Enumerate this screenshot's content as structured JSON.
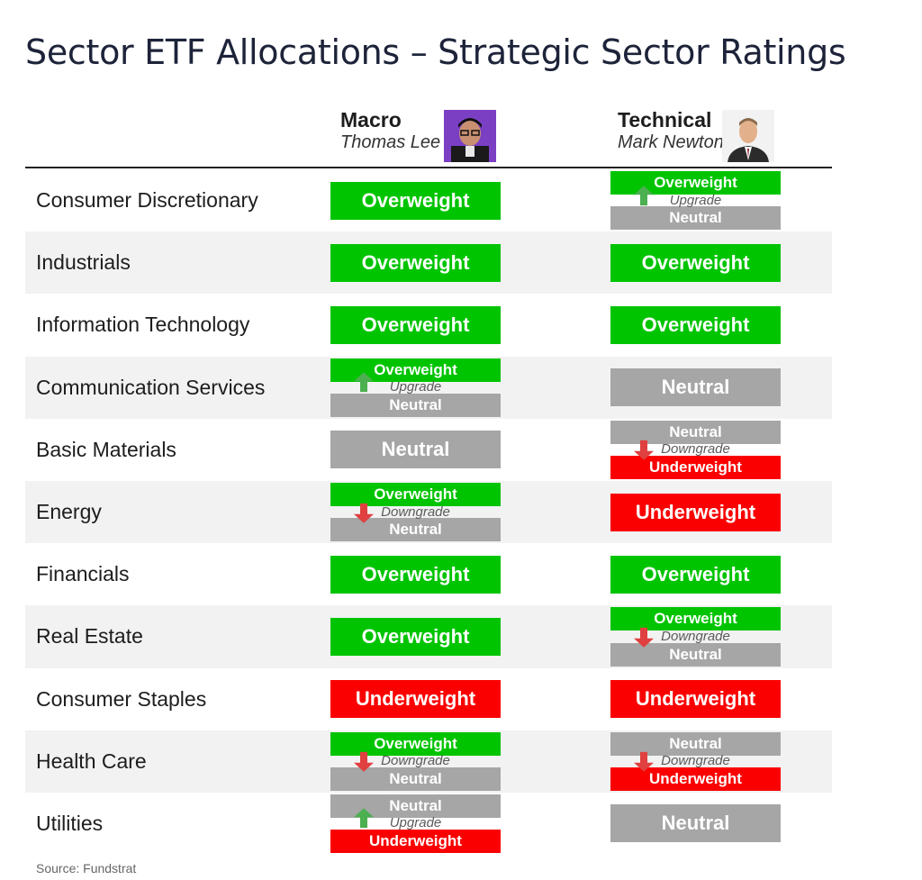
{
  "title": "Sector ETF Allocations – Strategic Sector Ratings",
  "columns": {
    "macro": {
      "name": "Macro",
      "person": "Thomas Lee"
    },
    "technical": {
      "name": "Technical",
      "person": "Mark Newton"
    }
  },
  "colors": {
    "overweight": "#00c400",
    "neutral": "#a6a6a6",
    "underweight": "#fa0000",
    "up_arrow": "#4caf50",
    "down_arrow": "#e04040"
  },
  "rows": [
    {
      "sector": "Consumer Discretionary",
      "macro": {
        "rating": "Overweight"
      },
      "technical": {
        "from": "Neutral",
        "to": "Overweight",
        "change": "Upgrade"
      }
    },
    {
      "sector": "Industrials",
      "macro": {
        "rating": "Overweight"
      },
      "technical": {
        "rating": "Overweight"
      }
    },
    {
      "sector": "Information Technology",
      "macro": {
        "rating": "Overweight"
      },
      "technical": {
        "rating": "Overweight"
      }
    },
    {
      "sector": "Communication Services",
      "macro": {
        "from": "Neutral",
        "to": "Overweight",
        "change": "Upgrade"
      },
      "technical": {
        "rating": "Neutral"
      }
    },
    {
      "sector": "Basic Materials",
      "macro": {
        "rating": "Neutral"
      },
      "technical": {
        "from": "Neutral",
        "to": "Underweight",
        "change": "Downgrade"
      }
    },
    {
      "sector": "Energy",
      "macro": {
        "from": "Overweight",
        "to": "Neutral",
        "change": "Downgrade"
      },
      "technical": {
        "rating": "Underweight"
      }
    },
    {
      "sector": "Financials",
      "macro": {
        "rating": "Overweight"
      },
      "technical": {
        "rating": "Overweight"
      }
    },
    {
      "sector": "Real Estate",
      "macro": {
        "rating": "Overweight"
      },
      "technical": {
        "from": "Overweight",
        "to": "Neutral",
        "change": "Downgrade"
      }
    },
    {
      "sector": "Consumer Staples",
      "macro": {
        "rating": "Underweight"
      },
      "technical": {
        "rating": "Underweight"
      }
    },
    {
      "sector": "Health Care",
      "macro": {
        "from": "Overweight",
        "to": "Neutral",
        "change": "Downgrade"
      },
      "technical": {
        "from": "Neutral",
        "to": "Underweight",
        "change": "Downgrade"
      }
    },
    {
      "sector": "Utilities",
      "macro": {
        "from": "Underweight",
        "to": "Neutral",
        "change": "Upgrade"
      },
      "technical": {
        "rating": "Neutral"
      }
    }
  ],
  "source": "Source: Fundstrat"
}
